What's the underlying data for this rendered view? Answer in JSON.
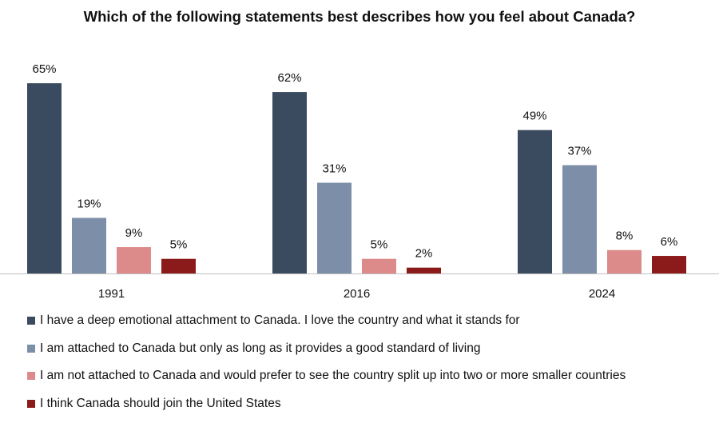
{
  "chart_data": {
    "type": "bar",
    "title": "Which of the following statements best describes how you feel about Canada?",
    "categories": [
      "1991",
      "2016",
      "2024"
    ],
    "series": [
      {
        "name": "I have a deep emotional attachment to Canada. I love the country and what it stands for",
        "color": "#3a4a5f",
        "values": [
          65,
          62,
          49
        ],
        "labels": [
          "65%",
          "62%",
          "49%"
        ]
      },
      {
        "name": "I am attached to Canada but only as long as it provides a good standard of living",
        "color": "#7d8fa8",
        "values": [
          19,
          31,
          37
        ],
        "labels": [
          "19%",
          "31%",
          "37%"
        ]
      },
      {
        "name": "I am not attached to Canada and would prefer to see the country split up into two or more smaller countries",
        "color": "#dc8a8a",
        "values": [
          9,
          5,
          8
        ],
        "labels": [
          "9%",
          "5%",
          "8%"
        ]
      },
      {
        "name": "I think Canada should join the United States",
        "color": "#8b1a1a",
        "values": [
          5,
          2,
          6
        ],
        "labels": [
          "5%",
          "2%",
          "6%"
        ]
      }
    ],
    "xlabel": "",
    "ylabel": "",
    "legend_position": "bottom",
    "grid": false
  }
}
